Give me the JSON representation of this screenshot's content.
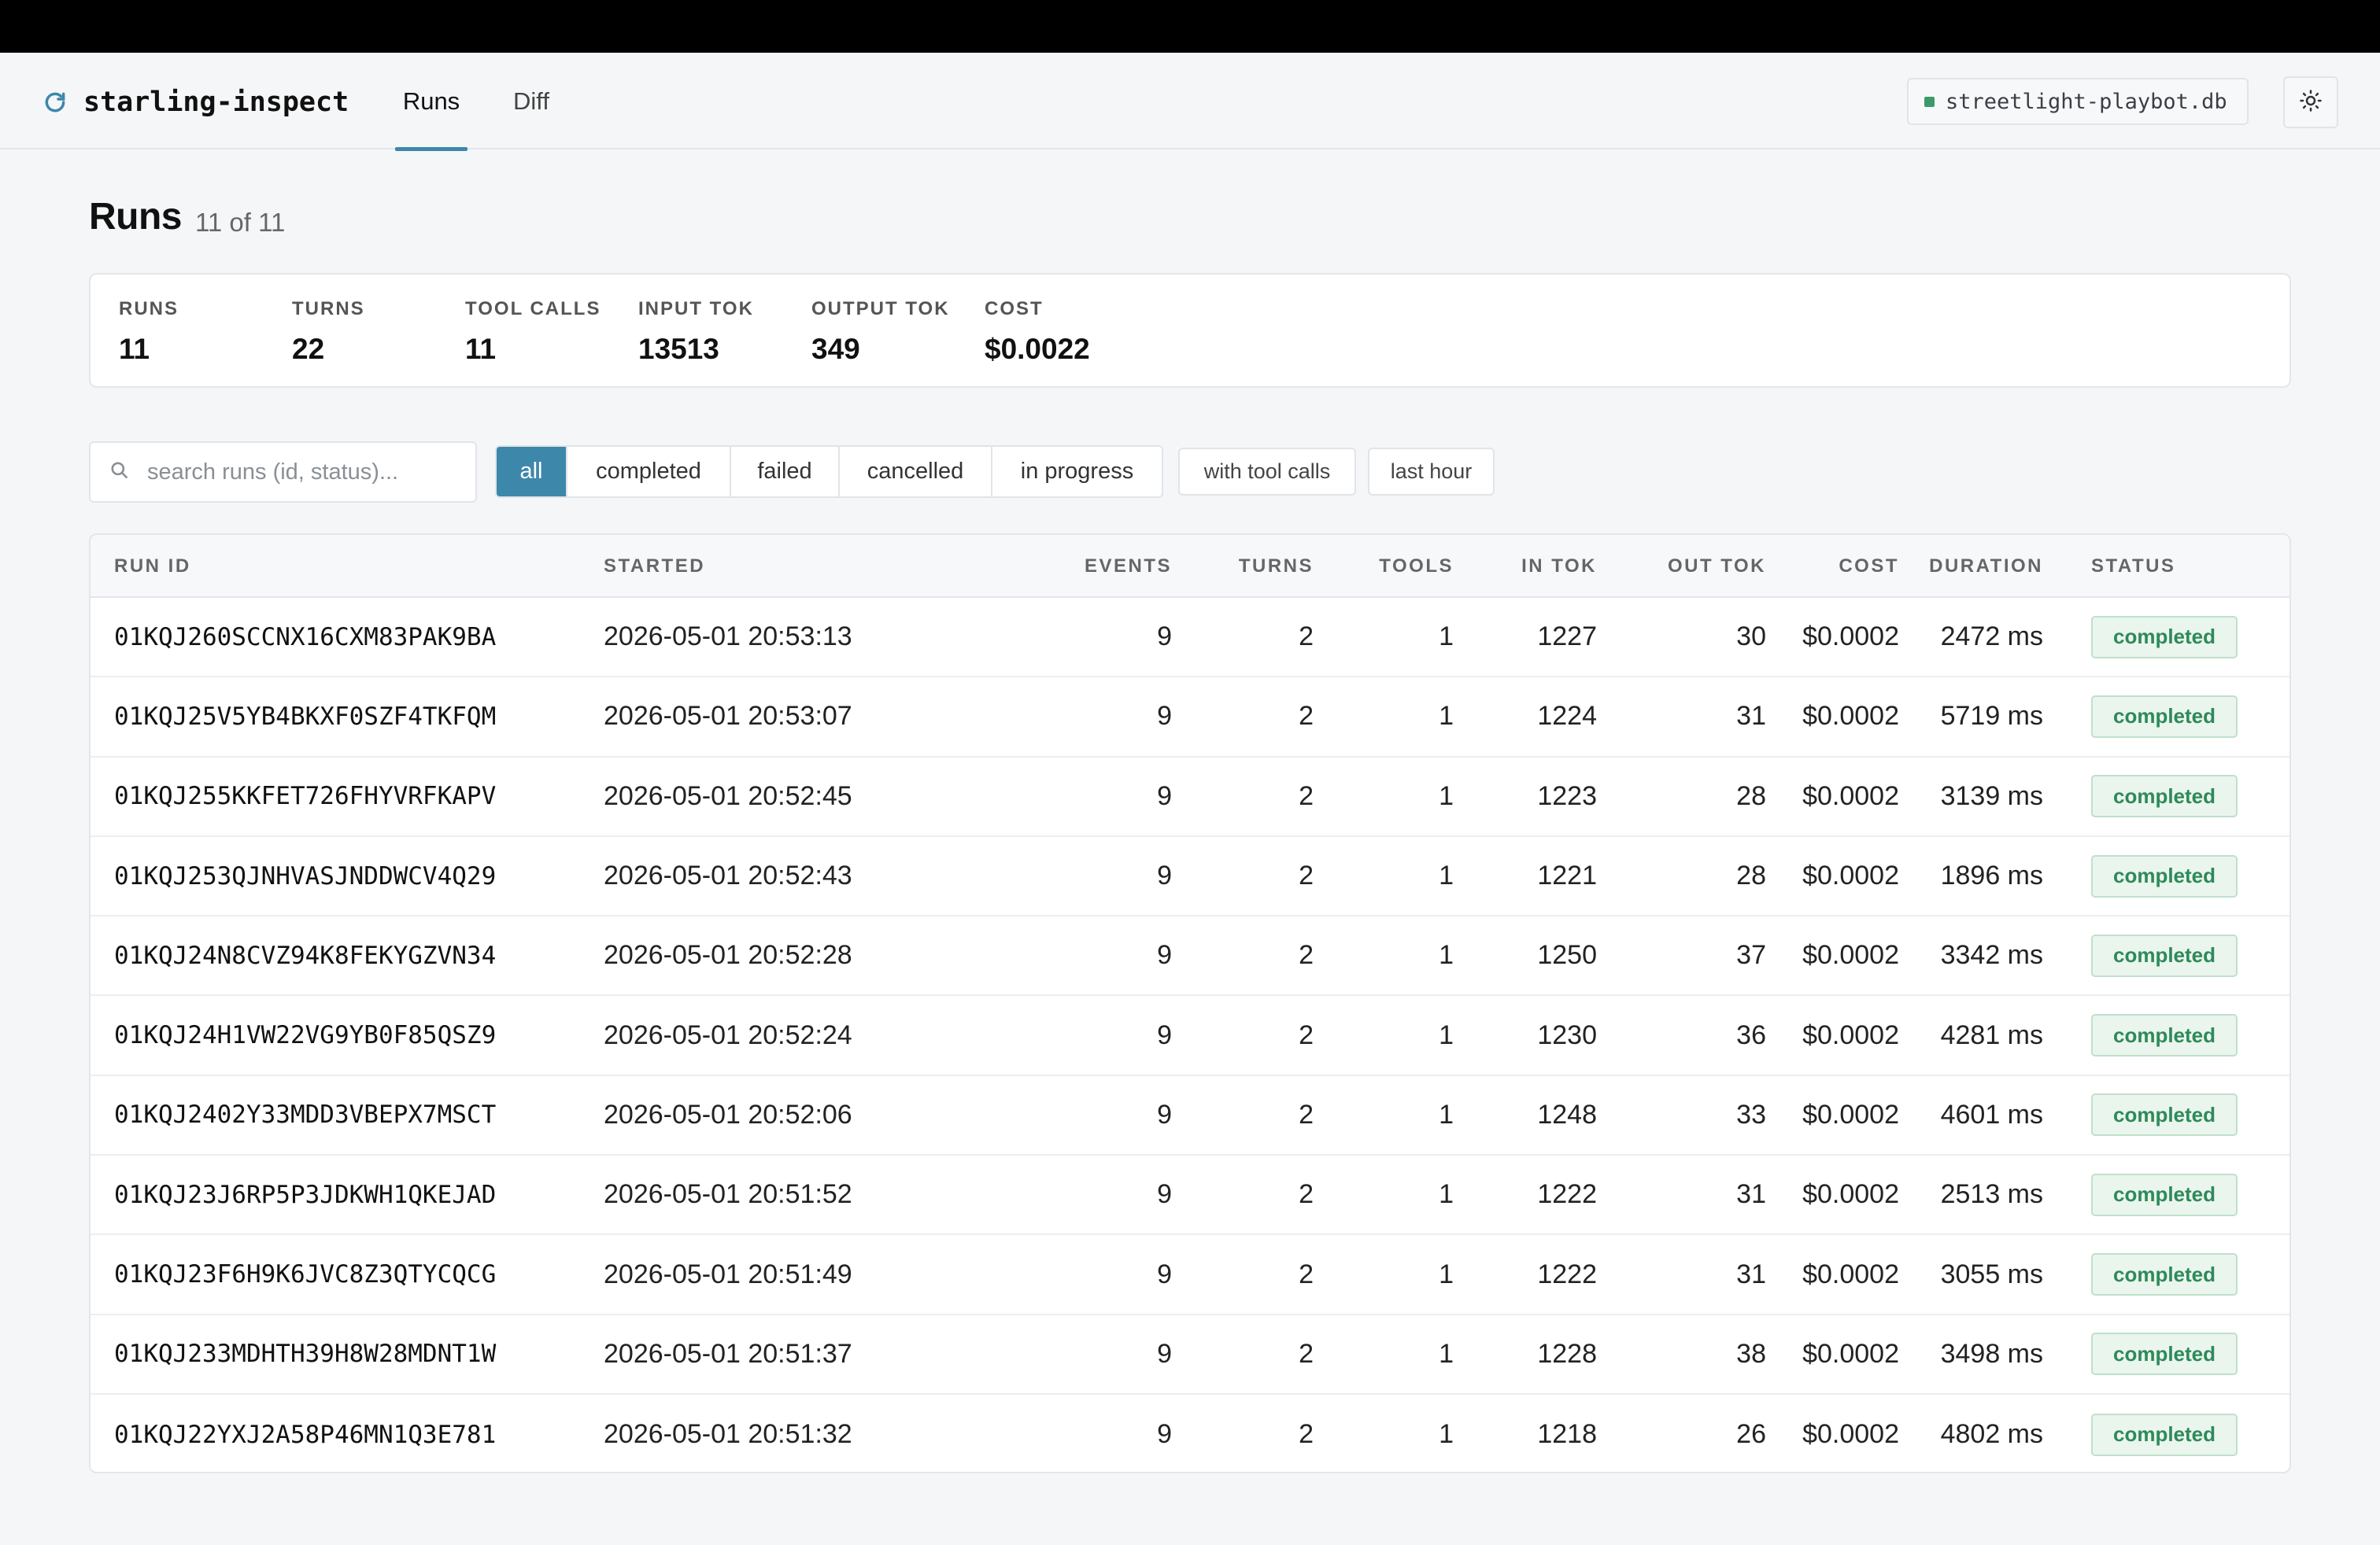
{
  "app": {
    "name": "starling-inspect",
    "brand_icon": "refresh-icon",
    "tabs": [
      {
        "label": "Runs",
        "active": true
      },
      {
        "label": "Diff",
        "active": false
      }
    ],
    "db_name": "streetlight-playbot.db",
    "db_status_color": "#3c9a6a",
    "theme_icon": "sun-icon",
    "accent_color": "#3d87aa"
  },
  "page": {
    "title": "Runs",
    "count_text": "11 of 11"
  },
  "stats": [
    {
      "label": "RUNS",
      "value": "11"
    },
    {
      "label": "TURNS",
      "value": "22"
    },
    {
      "label": "TOOL CALLS",
      "value": "11"
    },
    {
      "label": "INPUT TOK",
      "value": "13513"
    },
    {
      "label": "OUTPUT TOK",
      "value": "349"
    },
    {
      "label": "COST",
      "value": "$0.0022"
    }
  ],
  "filters": {
    "search_placeholder": "search runs (id, status)...",
    "status_options": [
      "all",
      "completed",
      "failed",
      "cancelled",
      "in progress"
    ],
    "selected_status": "all",
    "toggles": [
      "with tool calls",
      "last hour"
    ]
  },
  "table": {
    "columns": [
      "RUN ID",
      "STARTED",
      "EVENTS",
      "TURNS",
      "TOOLS",
      "IN TOK",
      "OUT TOK",
      "COST",
      "DURATION",
      "STATUS"
    ],
    "rows": [
      [
        "01KQJ260SCCNX16CXM83PAK9BA",
        "2026-05-01 20:53:13",
        "9",
        "2",
        "1",
        "1227",
        "30",
        "$0.0002",
        "2472 ms",
        "completed"
      ],
      [
        "01KQJ25V5YB4BKXF0SZF4TKFQM",
        "2026-05-01 20:53:07",
        "9",
        "2",
        "1",
        "1224",
        "31",
        "$0.0002",
        "5719 ms",
        "completed"
      ],
      [
        "01KQJ255KKFET726FHYVRFKAPV",
        "2026-05-01 20:52:45",
        "9",
        "2",
        "1",
        "1223",
        "28",
        "$0.0002",
        "3139 ms",
        "completed"
      ],
      [
        "01KQJ253QJNHVASJNDDWCV4Q29",
        "2026-05-01 20:52:43",
        "9",
        "2",
        "1",
        "1221",
        "28",
        "$0.0002",
        "1896 ms",
        "completed"
      ],
      [
        "01KQJ24N8CVZ94K8FEKYGZVN34",
        "2026-05-01 20:52:28",
        "9",
        "2",
        "1",
        "1250",
        "37",
        "$0.0002",
        "3342 ms",
        "completed"
      ],
      [
        "01KQJ24H1VW22VG9YB0F85QSZ9",
        "2026-05-01 20:52:24",
        "9",
        "2",
        "1",
        "1230",
        "36",
        "$0.0002",
        "4281 ms",
        "completed"
      ],
      [
        "01KQJ2402Y33MDD3VBEPX7MSCT",
        "2026-05-01 20:52:06",
        "9",
        "2",
        "1",
        "1248",
        "33",
        "$0.0002",
        "4601 ms",
        "completed"
      ],
      [
        "01KQJ23J6RP5P3JDKWH1QKEJAD",
        "2026-05-01 20:51:52",
        "9",
        "2",
        "1",
        "1222",
        "31",
        "$0.0002",
        "2513 ms",
        "completed"
      ],
      [
        "01KQJ23F6H9K6JVC8Z3QTYCQCG",
        "2026-05-01 20:51:49",
        "9",
        "2",
        "1",
        "1222",
        "31",
        "$0.0002",
        "3055 ms",
        "completed"
      ],
      [
        "01KQJ233MDHTH39H8W28MDNT1W",
        "2026-05-01 20:51:37",
        "9",
        "2",
        "1",
        "1228",
        "38",
        "$0.0002",
        "3498 ms",
        "completed"
      ],
      [
        "01KQJ22YXJ2A58P46MN1Q3E781",
        "2026-05-01 20:51:32",
        "9",
        "2",
        "1",
        "1218",
        "26",
        "$0.0002",
        "4802 ms",
        "completed"
      ]
    ],
    "status_color": "#2e8a58"
  }
}
